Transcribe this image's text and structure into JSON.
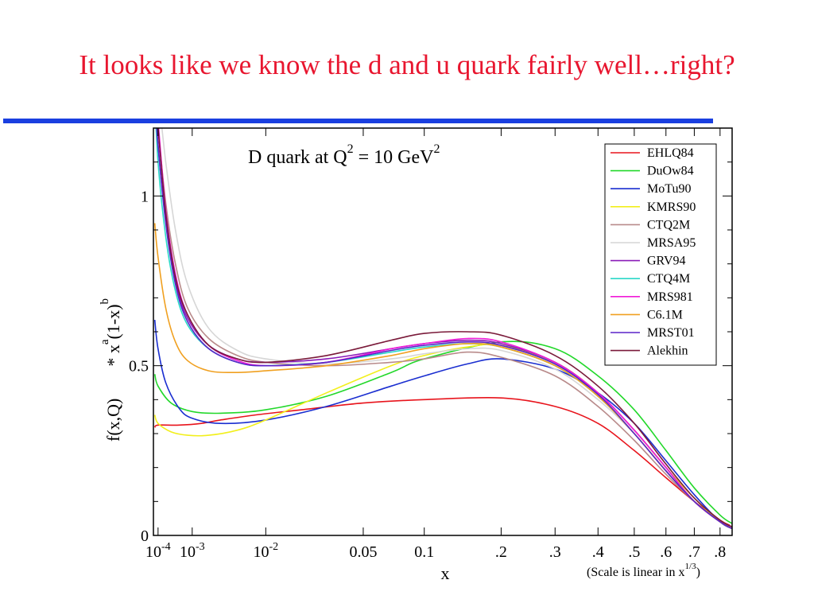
{
  "slide": {
    "title": "It looks like we know the d and u quark fairly well…right?"
  },
  "chart_data": {
    "type": "line",
    "title": "D quark at Q² = 10 GeV²",
    "title_parts": {
      "text": "D quark at Q",
      "exp1": "2",
      "mid": " = 10 GeV",
      "exp2": "2"
    },
    "xlabel": "x",
    "ylabel_parts": {
      "a": "f(x,Q)",
      "b": "* x",
      "exp_a": "a",
      "c": "(1-x)",
      "exp_b": "b"
    },
    "note_parts": {
      "text": "(Scale is linear in x",
      "exp": "1/3",
      "close": ")"
    },
    "x_scale": "linear in x^(1/3)",
    "xlim": [
      6e-05,
      0.85
    ],
    "ylim": [
      0,
      1.2
    ],
    "x_ticks": [
      {
        "x": 0.0001,
        "base": "10",
        "exp": "-4"
      },
      {
        "x": 0.001,
        "base": "10",
        "exp": "-3"
      },
      {
        "x": 0.01,
        "base": "10",
        "exp": "-2"
      },
      {
        "x": 0.05,
        "label": "0.05"
      },
      {
        "x": 0.1,
        "label": "0.1"
      },
      {
        "x": 0.2,
        "label": ".2"
      },
      {
        "x": 0.3,
        "label": ".3"
      },
      {
        "x": 0.4,
        "label": ".4"
      },
      {
        "x": 0.5,
        "label": ".5"
      },
      {
        "x": 0.6,
        "label": ".6"
      },
      {
        "x": 0.7,
        "label": ".7"
      },
      {
        "x": 0.8,
        "label": ".8"
      }
    ],
    "y_ticks": [
      {
        "y": 0,
        "label": "0"
      },
      {
        "y": 0.5,
        "label": "0.5"
      },
      {
        "y": 1,
        "label": "1"
      }
    ],
    "legend_position": "top-right",
    "series": [
      {
        "name": "EHLQ84",
        "color": "#e8141c",
        "x": [
          7e-05,
          0.0001,
          0.0005,
          0.0015,
          0.003,
          0.008,
          0.02,
          0.05,
          0.1,
          0.2,
          0.3,
          0.4,
          0.5,
          0.6,
          0.7,
          0.8,
          0.84
        ],
        "y": [
          0.318,
          0.325,
          0.325,
          0.33,
          0.34,
          0.355,
          0.37,
          0.39,
          0.4,
          0.405,
          0.38,
          0.33,
          0.25,
          0.17,
          0.1,
          0.045,
          0.03
        ]
      },
      {
        "name": "DuOw84",
        "color": "#22d82a",
        "x": [
          7e-05,
          0.0001,
          0.0003,
          0.001,
          0.003,
          0.01,
          0.03,
          0.07,
          0.1,
          0.2,
          0.3,
          0.4,
          0.5,
          0.6,
          0.7,
          0.8,
          0.85
        ],
        "y": [
          0.475,
          0.44,
          0.39,
          0.365,
          0.36,
          0.37,
          0.41,
          0.48,
          0.52,
          0.57,
          0.55,
          0.47,
          0.37,
          0.25,
          0.14,
          0.06,
          0.035
        ]
      },
      {
        "name": "MoTu90",
        "color": "#1a2ed0",
        "x": [
          7e-05,
          0.0001,
          0.0002,
          0.0005,
          0.001,
          0.003,
          0.01,
          0.03,
          0.07,
          0.1,
          0.15,
          0.2,
          0.3,
          0.4,
          0.5,
          0.6,
          0.7,
          0.8,
          0.85
        ],
        "y": [
          0.635,
          0.55,
          0.45,
          0.375,
          0.345,
          0.33,
          0.34,
          0.38,
          0.44,
          0.47,
          0.505,
          0.52,
          0.49,
          0.42,
          0.33,
          0.22,
          0.12,
          0.04,
          0.02
        ]
      },
      {
        "name": "KMRS90",
        "color": "#f2ef1c",
        "x": [
          7e-05,
          0.0001,
          0.0003,
          0.0008,
          0.002,
          0.005,
          0.01,
          0.03,
          0.07,
          0.1,
          0.15,
          0.2,
          0.3,
          0.4,
          0.5,
          0.6,
          0.7,
          0.8,
          0.85
        ],
        "y": [
          0.355,
          0.33,
          0.305,
          0.295,
          0.295,
          0.31,
          0.34,
          0.42,
          0.5,
          0.53,
          0.555,
          0.56,
          0.51,
          0.42,
          0.31,
          0.2,
          0.11,
          0.04,
          0.02
        ]
      },
      {
        "name": "CTQ2M",
        "color": "#b88a8a",
        "x": [
          7e-05,
          0.0001,
          0.0002,
          0.0004,
          0.0008,
          0.002,
          0.005,
          0.01,
          0.03,
          0.07,
          0.1,
          0.15,
          0.2,
          0.3,
          0.4,
          0.5,
          0.6,
          0.7,
          0.8,
          0.85
        ],
        "y": [
          1.3,
          1.2,
          0.98,
          0.8,
          0.67,
          0.58,
          0.53,
          0.51,
          0.5,
          0.51,
          0.52,
          0.54,
          0.525,
          0.47,
          0.38,
          0.28,
          0.18,
          0.1,
          0.04,
          0.02
        ]
      },
      {
        "name": "MRSA95",
        "color": "#d6d6d6",
        "x": [
          7e-05,
          0.0001,
          0.0002,
          0.0004,
          0.0008,
          0.002,
          0.005,
          0.01,
          0.03,
          0.07,
          0.1,
          0.15,
          0.2,
          0.3,
          0.4,
          0.5,
          0.6,
          0.7,
          0.8,
          0.85
        ],
        "y": [
          1.3,
          1.3,
          1.1,
          0.9,
          0.74,
          0.61,
          0.545,
          0.52,
          0.505,
          0.52,
          0.535,
          0.55,
          0.545,
          0.49,
          0.4,
          0.3,
          0.19,
          0.1,
          0.04,
          0.02
        ]
      },
      {
        "name": "GRV94",
        "color": "#8a1ab8",
        "x": [
          7e-05,
          0.0001,
          0.0002,
          0.0004,
          0.0008,
          0.002,
          0.005,
          0.01,
          0.03,
          0.07,
          0.1,
          0.15,
          0.2,
          0.3,
          0.4,
          0.5,
          0.6,
          0.7,
          0.8,
          0.85
        ],
        "y": [
          1.3,
          1.15,
          0.93,
          0.75,
          0.64,
          0.56,
          0.52,
          0.51,
          0.52,
          0.55,
          0.565,
          0.575,
          0.565,
          0.51,
          0.42,
          0.31,
          0.2,
          0.1,
          0.04,
          0.02
        ]
      },
      {
        "name": "CTQ4M",
        "color": "#2ad8c8",
        "x": [
          7e-05,
          0.0001,
          0.0002,
          0.0004,
          0.0008,
          0.002,
          0.005,
          0.01,
          0.03,
          0.07,
          0.1,
          0.15,
          0.2,
          0.3,
          0.4,
          0.5,
          0.6,
          0.7,
          0.8,
          0.85
        ],
        "y": [
          1.3,
          1.1,
          0.88,
          0.72,
          0.62,
          0.55,
          0.51,
          0.5,
          0.51,
          0.54,
          0.555,
          0.565,
          0.555,
          0.5,
          0.41,
          0.3,
          0.19,
          0.1,
          0.04,
          0.02
        ]
      },
      {
        "name": "MRS981",
        "color": "#f01ad8",
        "x": [
          7e-05,
          0.0001,
          0.0002,
          0.0004,
          0.0008,
          0.002,
          0.005,
          0.01,
          0.03,
          0.07,
          0.1,
          0.15,
          0.2,
          0.3,
          0.4,
          0.5,
          0.6,
          0.7,
          0.8,
          0.85
        ],
        "y": [
          1.3,
          1.22,
          0.96,
          0.77,
          0.65,
          0.56,
          0.515,
          0.5,
          0.51,
          0.55,
          0.565,
          0.58,
          0.57,
          0.51,
          0.42,
          0.31,
          0.2,
          0.1,
          0.04,
          0.02
        ]
      },
      {
        "name": "C6.1M",
        "color": "#f0a020",
        "x": [
          7e-05,
          0.0001,
          0.0002,
          0.0004,
          0.0008,
          0.002,
          0.005,
          0.01,
          0.03,
          0.07,
          0.1,
          0.15,
          0.2,
          0.3,
          0.4,
          0.5,
          0.6,
          0.7,
          0.8,
          0.85
        ],
        "y": [
          0.92,
          0.82,
          0.67,
          0.57,
          0.515,
          0.485,
          0.48,
          0.485,
          0.5,
          0.53,
          0.55,
          0.565,
          0.555,
          0.5,
          0.41,
          0.3,
          0.19,
          0.1,
          0.04,
          0.02
        ]
      },
      {
        "name": "MRST01",
        "color": "#5a22c8",
        "x": [
          7e-05,
          0.0001,
          0.0002,
          0.0004,
          0.0008,
          0.002,
          0.005,
          0.01,
          0.03,
          0.07,
          0.1,
          0.15,
          0.2,
          0.3,
          0.4,
          0.5,
          0.6,
          0.7,
          0.8,
          0.85
        ],
        "y": [
          1.3,
          1.15,
          0.92,
          0.74,
          0.63,
          0.55,
          0.51,
          0.5,
          0.51,
          0.545,
          0.56,
          0.57,
          0.56,
          0.505,
          0.415,
          0.3,
          0.19,
          0.1,
          0.04,
          0.02
        ]
      },
      {
        "name": "Alekhin",
        "color": "#7a1a3a",
        "x": [
          7e-05,
          0.0001,
          0.0002,
          0.0004,
          0.0008,
          0.002,
          0.005,
          0.01,
          0.03,
          0.07,
          0.1,
          0.15,
          0.2,
          0.3,
          0.4,
          0.5,
          0.6,
          0.7,
          0.8,
          0.85
        ],
        "y": [
          1.3,
          1.2,
          0.95,
          0.76,
          0.65,
          0.56,
          0.52,
          0.51,
          0.53,
          0.575,
          0.595,
          0.6,
          0.59,
          0.53,
          0.44,
          0.33,
          0.21,
          0.11,
          0.045,
          0.025
        ]
      }
    ]
  }
}
